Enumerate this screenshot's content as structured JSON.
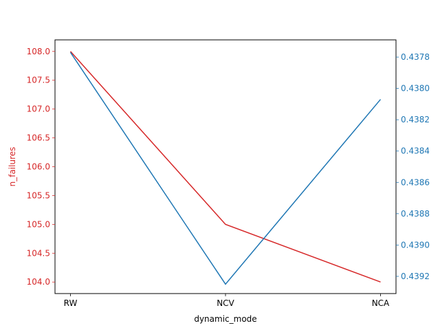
{
  "chart_data": {
    "type": "line",
    "title": "",
    "xlabel": "dynamic_mode",
    "categories": [
      "RW",
      "NCV",
      "NCA"
    ],
    "left_axis": {
      "label": "n_failures",
      "color": "#d62728",
      "ylim": [
        103.8,
        108.2
      ],
      "ticks": [
        "104.0",
        "104.5",
        "105.0",
        "105.5",
        "106.0",
        "106.5",
        "107.0",
        "107.5",
        "108.0"
      ],
      "tick_values": [
        104.0,
        104.5,
        105.0,
        105.5,
        106.0,
        106.5,
        107.0,
        107.5,
        108.0
      ]
    },
    "right_axis": {
      "label": "",
      "color": "#1f77b4",
      "inverted": true,
      "ylim": [
        0.43769,
        0.43931
      ],
      "ticks": [
        "0.4378",
        "0.4380",
        "0.4382",
        "0.4384",
        "0.4386",
        "0.4388",
        "0.4390",
        "0.4392"
      ],
      "tick_values": [
        0.4378,
        0.438,
        0.4382,
        0.4384,
        0.4386,
        0.4388,
        0.439,
        0.4392
      ]
    },
    "series": [
      {
        "axis": "left",
        "color": "#d62728",
        "values": [
          108.0,
          105.0,
          104.0
        ]
      },
      {
        "axis": "right",
        "color": "#1f77b4",
        "values": [
          0.43777,
          0.43925,
          0.43807
        ]
      }
    ],
    "grid": false,
    "legend": "none"
  }
}
